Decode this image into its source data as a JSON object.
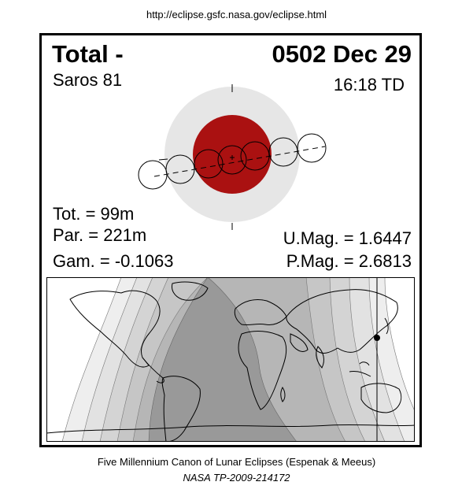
{
  "source_url": "http://eclipse.gsfc.nasa.gov/eclipse.html",
  "eclipse": {
    "type": "Total  -",
    "date": "0502 Dec 29",
    "saros": "Saros  81",
    "time": "16:18 TD",
    "tot_duration": "Tot. =  99m",
    "par_duration": "Par. = 221m",
    "gamma": "Gam. = -0.1063",
    "umbral_mag": "U.Mag. = 1.6447",
    "penumbral_mag": "P.Mag. = 2.6813"
  },
  "colors": {
    "penumbra": "#e6e6e6",
    "umbra": "#aa1111",
    "map_night": "#999999",
    "map_mid": "#bbbbbb",
    "map_light": "#dddddd"
  },
  "caption": {
    "line1": "Five Millennium Canon of Lunar Eclipses (Espenak & Meeus)",
    "line2": "NASA TP-2009-214172"
  }
}
